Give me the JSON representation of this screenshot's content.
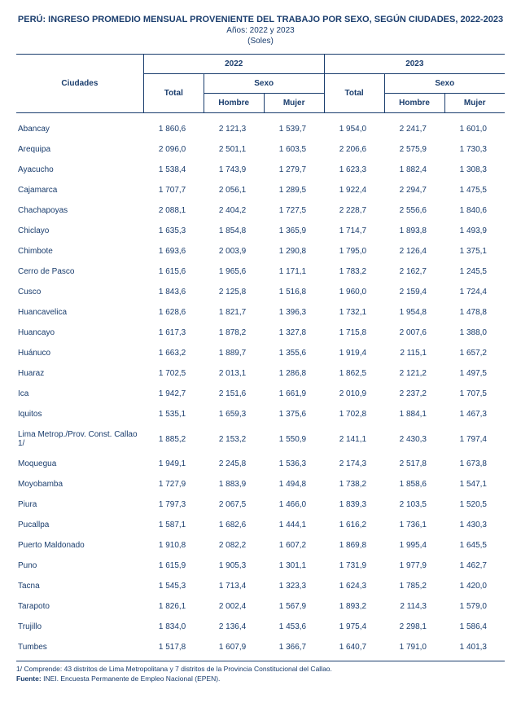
{
  "header": {
    "title": "PERÚ: INGRESO PROMEDIO MENSUAL PROVENIENTE DEL TRABAJO POR SEXO, SEGÚN CIUDADES, 2022-2023",
    "years_line": "Años: 2022  y 2023",
    "unit_line": "(Soles)"
  },
  "columns": {
    "city": "Ciudades",
    "year2022": "2022",
    "year2023": "2023",
    "total": "Total",
    "sexo": "Sexo",
    "hombre": "Hombre",
    "mujer": "Mujer"
  },
  "rows": [
    {
      "city": "Abancay",
      "t22": "1 860,6",
      "h22": "2 121,3",
      "m22": "1 539,7",
      "t23": "1 954,0",
      "h23": "2 241,7",
      "m23": "1 601,0"
    },
    {
      "city": "Arequipa",
      "t22": "2 096,0",
      "h22": "2 501,1",
      "m22": "1 603,5",
      "t23": "2 206,6",
      "h23": "2 575,9",
      "m23": "1 730,3"
    },
    {
      "city": "Ayacucho",
      "t22": "1 538,4",
      "h22": "1 743,9",
      "m22": "1 279,7",
      "t23": "1 623,3",
      "h23": "1 882,4",
      "m23": "1 308,3"
    },
    {
      "city": "Cajamarca",
      "t22": "1 707,7",
      "h22": "2 056,1",
      "m22": "1 289,5",
      "t23": "1 922,4",
      "h23": "2 294,7",
      "m23": "1 475,5"
    },
    {
      "city": "Chachapoyas",
      "t22": "2 088,1",
      "h22": "2 404,2",
      "m22": "1 727,5",
      "t23": "2 228,7",
      "h23": "2 556,6",
      "m23": "1 840,6"
    },
    {
      "city": "Chiclayo",
      "t22": "1 635,3",
      "h22": "1 854,8",
      "m22": "1 365,9",
      "t23": "1 714,7",
      "h23": "1 893,8",
      "m23": "1 493,9"
    },
    {
      "city": "Chimbote",
      "t22": "1 693,6",
      "h22": "2 003,9",
      "m22": "1 290,8",
      "t23": "1 795,0",
      "h23": "2 126,4",
      "m23": "1 375,1"
    },
    {
      "city": "Cerro de Pasco",
      "t22": "1 615,6",
      "h22": "1 965,6",
      "m22": "1 171,1",
      "t23": "1 783,2",
      "h23": "2 162,7",
      "m23": "1 245,5"
    },
    {
      "city": "Cusco",
      "t22": "1 843,6",
      "h22": "2 125,8",
      "m22": "1 516,8",
      "t23": "1 960,0",
      "h23": "2 159,4",
      "m23": "1 724,4"
    },
    {
      "city": "Huancavelica",
      "t22": "1 628,6",
      "h22": "1 821,7",
      "m22": "1 396,3",
      "t23": "1 732,1",
      "h23": "1 954,8",
      "m23": "1 478,8"
    },
    {
      "city": "Huancayo",
      "t22": "1 617,3",
      "h22": "1 878,2",
      "m22": "1 327,8",
      "t23": "1 715,8",
      "h23": "2 007,6",
      "m23": "1 388,0"
    },
    {
      "city": "Huánuco",
      "t22": "1 663,2",
      "h22": "1 889,7",
      "m22": "1 355,6",
      "t23": "1 919,4",
      "h23": "2 115,1",
      "m23": "1 657,2"
    },
    {
      "city": "Huaraz",
      "t22": "1 702,5",
      "h22": "2 013,1",
      "m22": "1 286,8",
      "t23": "1 862,5",
      "h23": "2 121,2",
      "m23": "1 497,5"
    },
    {
      "city": "Ica",
      "t22": "1 942,7",
      "h22": "2 151,6",
      "m22": "1 661,9",
      "t23": "2 010,9",
      "h23": "2 237,2",
      "m23": "1 707,5"
    },
    {
      "city": "Iquitos",
      "t22": "1 535,1",
      "h22": "1 659,3",
      "m22": "1 375,6",
      "t23": "1 702,8",
      "h23": "1 884,1",
      "m23": "1 467,3"
    },
    {
      "city": "Lima Metrop./Prov. Const. Callao 1/",
      "t22": "1 885,2",
      "h22": "2 153,2",
      "m22": "1 550,9",
      "t23": "2 141,1",
      "h23": "2 430,3",
      "m23": "1 797,4"
    },
    {
      "city": "Moquegua",
      "t22": "1 949,1",
      "h22": "2 245,8",
      "m22": "1 536,3",
      "t23": "2 174,3",
      "h23": "2 517,8",
      "m23": "1 673,8"
    },
    {
      "city": "Moyobamba",
      "t22": "1 727,9",
      "h22": "1 883,9",
      "m22": "1 494,8",
      "t23": "1 738,2",
      "h23": "1 858,6",
      "m23": "1 547,1"
    },
    {
      "city": "Piura",
      "t22": "1 797,3",
      "h22": "2 067,5",
      "m22": "1 466,0",
      "t23": "1 839,3",
      "h23": "2 103,5",
      "m23": "1 520,5"
    },
    {
      "city": "Pucallpa",
      "t22": "1 587,1",
      "h22": "1 682,6",
      "m22": "1 444,1",
      "t23": "1 616,2",
      "h23": "1 736,1",
      "m23": "1 430,3"
    },
    {
      "city": "Puerto Maldonado",
      "t22": "1 910,8",
      "h22": "2 082,2",
      "m22": "1 607,2",
      "t23": "1 869,8",
      "h23": "1 995,4",
      "m23": "1 645,5"
    },
    {
      "city": "Puno",
      "t22": "1 615,9",
      "h22": "1 905,3",
      "m22": "1 301,1",
      "t23": "1 731,9",
      "h23": "1 977,9",
      "m23": "1 462,7"
    },
    {
      "city": "Tacna",
      "t22": "1 545,3",
      "h22": "1 713,4",
      "m22": "1 323,3",
      "t23": "1 624,3",
      "h23": "1 785,2",
      "m23": "1 420,0"
    },
    {
      "city": "Tarapoto",
      "t22": "1 826,1",
      "h22": "2 002,4",
      "m22": "1 567,9",
      "t23": "1 893,2",
      "h23": "2 114,3",
      "m23": "1 579,0"
    },
    {
      "city": "Trujillo",
      "t22": "1 834,0",
      "h22": "2 136,4",
      "m22": "1 453,6",
      "t23": "1 975,4",
      "h23": "2 298,1",
      "m23": "1 586,4"
    },
    {
      "city": "Tumbes",
      "t22": "1 517,8",
      "h22": "1 607,9",
      "m22": "1 366,7",
      "t23": "1 640,7",
      "h23": "1 791,0",
      "m23": "1 401,3"
    }
  ],
  "footer": {
    "note": "1/ Comprende: 43 distritos de Lima Metropolitana y 7 distritos de la Provincia Constitucional del Callao.",
    "source_label": "Fuente:",
    "source_text": "INEI. Encuesta Permanente de Empleo Nacional (EPEN)."
  },
  "style": {
    "text_color": "#1a3d6d",
    "border_color": "#1a3d6d",
    "background": "#ffffff"
  }
}
